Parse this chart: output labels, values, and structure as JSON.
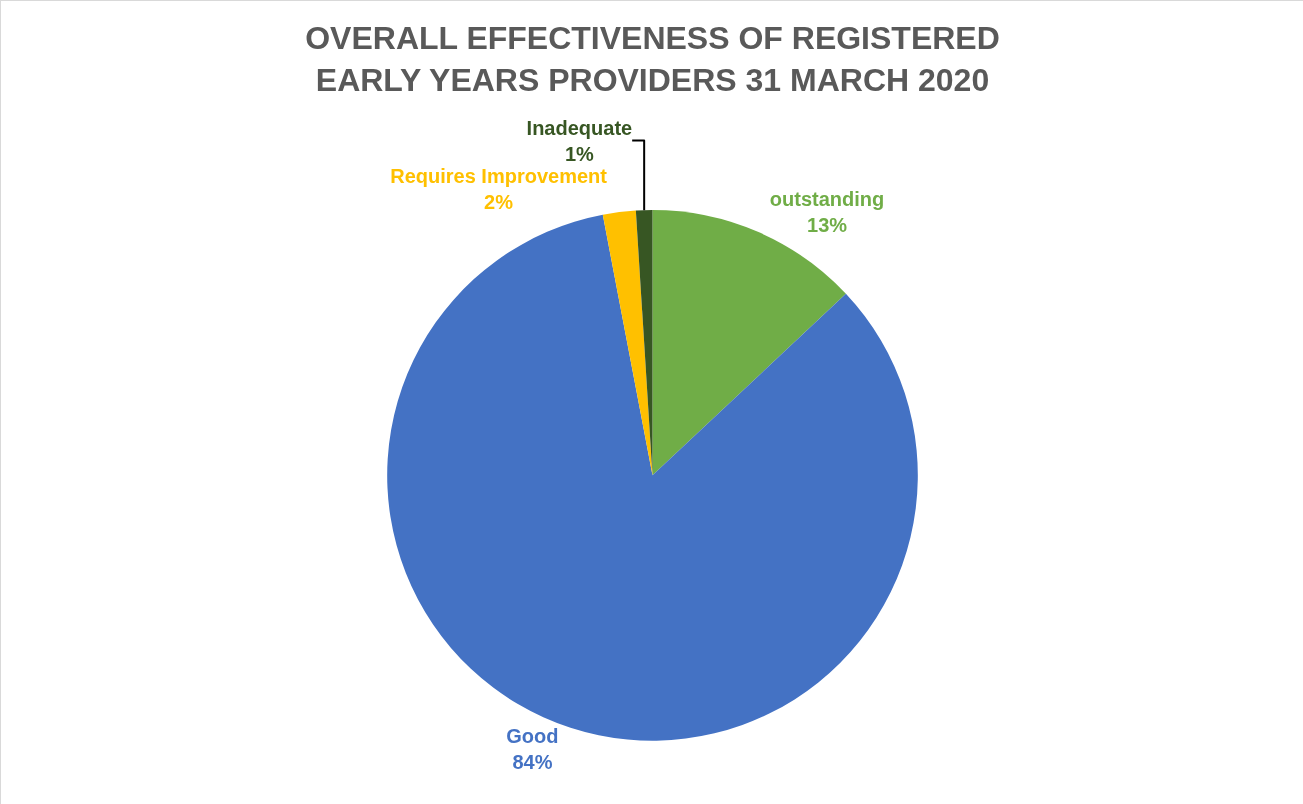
{
  "chart_data": {
    "type": "pie",
    "title": "OVERALL EFFECTIVENESS OF REGISTERED EARLY YEARS PROVIDERS 31 MARCH 2020",
    "categories": [
      "outstanding",
      "Good",
      "Requires Improvement",
      "Inadequate"
    ],
    "values": [
      13,
      84,
      2,
      1
    ],
    "value_labels": [
      "13%",
      "84%",
      "2%",
      "1%"
    ],
    "colors": [
      "#70ad47",
      "#4472c4",
      "#ffc000",
      "#375623"
    ],
    "legend": false
  }
}
